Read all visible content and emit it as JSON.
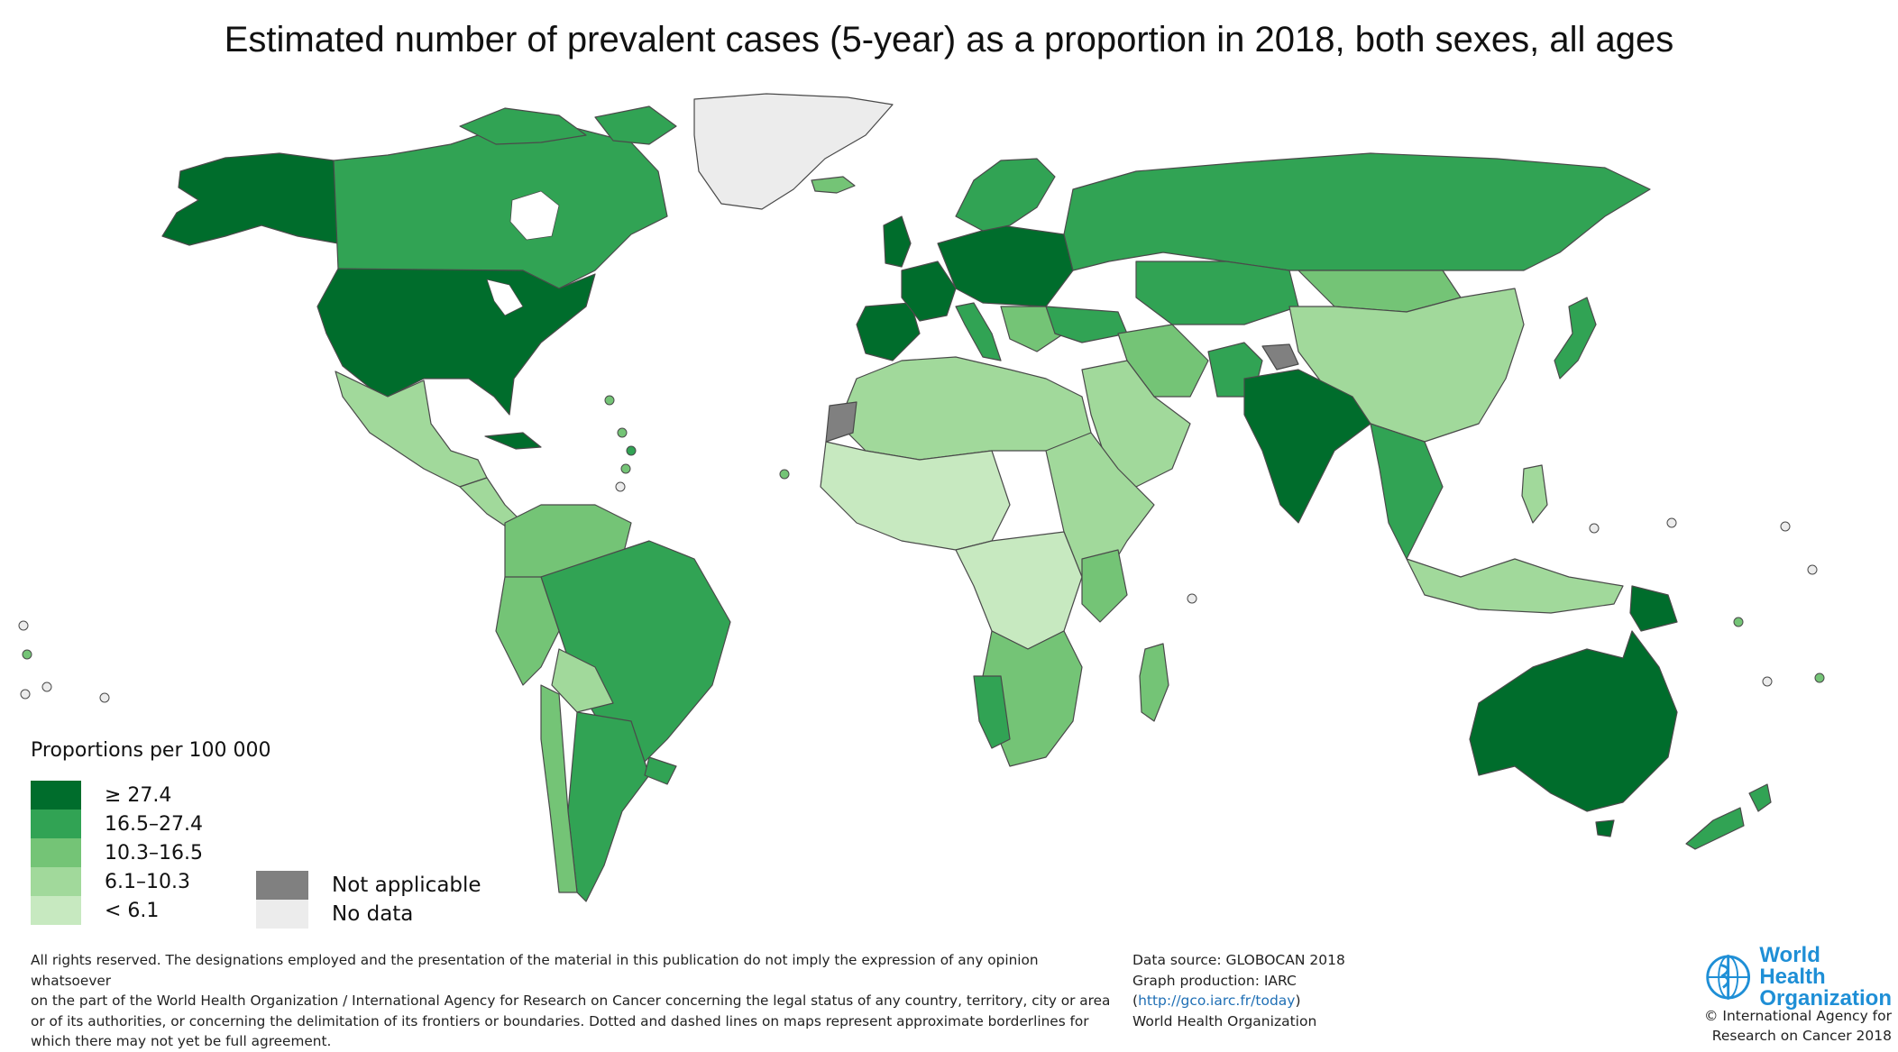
{
  "title": "Estimated number of prevalent cases (5-year) as a proportion in 2018, both sexes, all ages",
  "legend": {
    "title": "Proportions per 100 000",
    "classes": [
      {
        "label": "≥ 27.4",
        "color": "#006d2c"
      },
      {
        "label": "16.5–27.4",
        "color": "#31a354"
      },
      {
        "label": "10.3–16.5",
        "color": "#74c476"
      },
      {
        "label": "6.1–10.3",
        "color": "#a1d99b"
      },
      {
        "label": "< 6.1",
        "color": "#c7e9c0"
      }
    ],
    "not_applicable": {
      "label": "Not applicable",
      "color": "#808080"
    },
    "no_data": {
      "label": "No data",
      "color": "#ececec"
    }
  },
  "footer": {
    "disclaimer": [
      "All rights reserved. The designations employed and the presentation of the material in this publication do not imply the expression of any opinion whatsoever",
      "on the part of the World Health Organization / International Agency for Research on Cancer concerning the legal status of any country, territory, city or area",
      "or of its authorities, or concerning the delimitation of its frontiers or boundaries. Dotted and dashed lines on maps represent approximate borderlines for",
      "which there may not yet be full agreement."
    ],
    "data_source": "Data source: GLOBOCAN 2018",
    "graph_production": "Graph production: IARC",
    "link_open": "(",
    "link": "http://gco.iarc.fr/today",
    "link_close": ")",
    "organization": "World Health Organization"
  },
  "logo": {
    "line1": "World Health",
    "line2": "Organization"
  },
  "copyright": [
    "© International Agency for",
    "Research on Cancer 2018"
  ],
  "map_colors": {
    "border": "#4a4a4a",
    "lakes": "#ffffff"
  }
}
